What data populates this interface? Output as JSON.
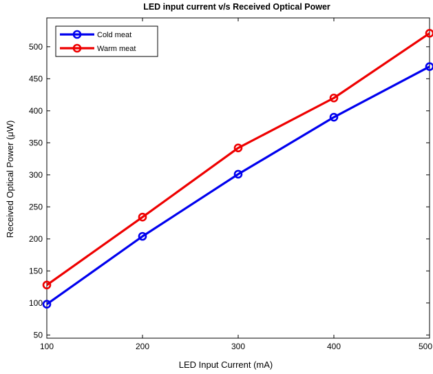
{
  "chart_data": {
    "type": "line",
    "title": "LED input current v/s Received Optical Power",
    "xlabel": "LED Input Current (mA)",
    "ylabel": "Received Optical Power (μW)",
    "x": [
      100,
      200,
      300,
      400,
      500
    ],
    "xlim": [
      100,
      500
    ],
    "ylim": [
      45,
      545
    ],
    "xticks": [
      "100",
      "200",
      "300",
      "400",
      "500"
    ],
    "yticks": [
      50,
      100,
      150,
      200,
      250,
      300,
      350,
      400,
      450,
      500
    ],
    "ytick_labels": [
      "50",
      "100",
      "150",
      "200",
      "250",
      "300",
      "350",
      "400",
      "450",
      "500"
    ],
    "grid": false,
    "legend_position": "top-left",
    "series": [
      {
        "name": "Cold meat",
        "color": "#0000ee",
        "marker": "circle",
        "values": [
          98,
          204,
          301,
          390,
          469
        ]
      },
      {
        "name": "Warm meat",
        "color": "#ee0000",
        "marker": "circle",
        "values": [
          128,
          234,
          342,
          420,
          521
        ]
      }
    ]
  }
}
